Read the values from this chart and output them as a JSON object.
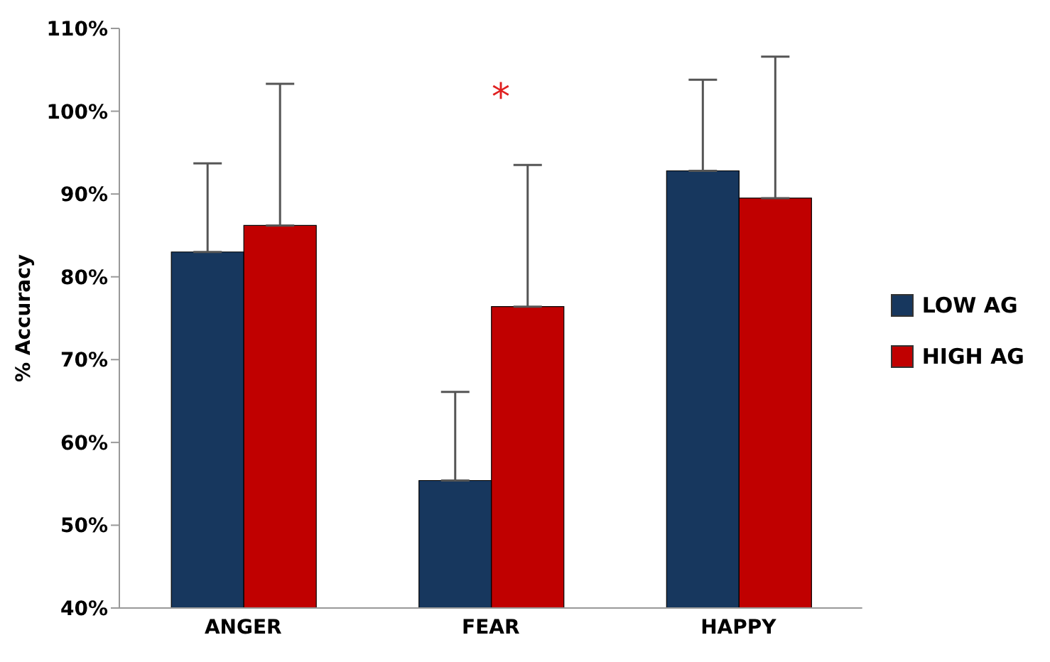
{
  "chart_data": {
    "type": "bar",
    "ylabel": "% Accuracy",
    "categories": [
      "ANGER",
      "FEAR",
      "HAPPY"
    ],
    "series": [
      {
        "name": "LOW AG",
        "color": "#17375e",
        "values": [
          83.0,
          55.4,
          92.8
        ],
        "errors": [
          [
            83.0,
            93.7
          ],
          [
            55.4,
            66.1
          ],
          [
            92.8,
            103.8
          ]
        ]
      },
      {
        "name": "HIGH AG",
        "color": "#c00000",
        "values": [
          86.2,
          76.4,
          89.5
        ],
        "errors": [
          [
            86.2,
            103.3
          ],
          [
            76.4,
            93.5
          ],
          [
            89.5,
            106.6
          ]
        ]
      }
    ],
    "ylim": [
      40,
      110
    ],
    "yticks": [
      {
        "value": 40,
        "label": "40%"
      },
      {
        "value": 50,
        "label": "50%"
      },
      {
        "value": 60,
        "label": "60%"
      },
      {
        "value": 70,
        "label": "70%"
      },
      {
        "value": 80,
        "label": "80%"
      },
      {
        "value": 90,
        "label": "90%"
      },
      {
        "value": 100,
        "label": "100%"
      },
      {
        "value": 110,
        "label": "110%"
      }
    ],
    "annotations": [
      "*"
    ],
    "legend": "right",
    "grid": false
  }
}
